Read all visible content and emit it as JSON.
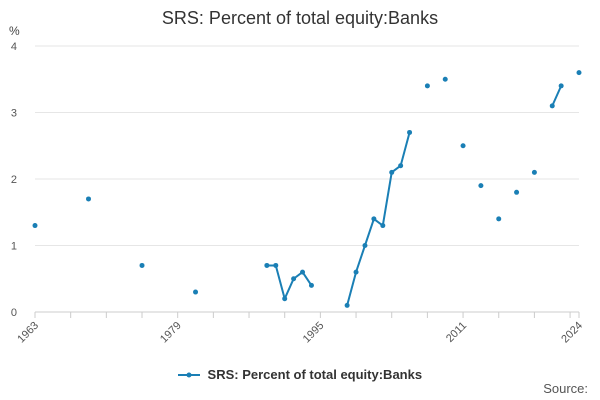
{
  "title": "SRS: Percent of total equity:Banks",
  "source_label": "Source:",
  "colors": {
    "series": "#1a7fb5",
    "grid": "#e6e6e6",
    "axis": "#cccccc"
  },
  "chart_data": {
    "type": "line",
    "title": "SRS: Percent of total equity:Banks",
    "ylabel": "%",
    "xlabel": "",
    "xlim": [
      1963,
      2024
    ],
    "ylim": [
      0,
      4
    ],
    "x_ticks": [
      1963,
      1979,
      1995,
      2011,
      2024
    ],
    "y_ticks": [
      0,
      1,
      2,
      3,
      4
    ],
    "grid": true,
    "legend": "bottom",
    "series": [
      {
        "name": "SRS: Percent of total equity:Banks",
        "points": [
          [
            1963,
            1.3
          ],
          [
            1969,
            1.7
          ],
          [
            1975,
            0.7
          ],
          [
            1981,
            0.3
          ],
          [
            1989,
            0.7
          ],
          [
            1990,
            0.7
          ],
          [
            1991,
            0.2
          ],
          [
            1992,
            0.5
          ],
          [
            1993,
            0.6
          ],
          [
            1994,
            0.4
          ],
          [
            1998,
            0.1
          ],
          [
            1999,
            0.6
          ],
          [
            2000,
            1.0
          ],
          [
            2001,
            1.4
          ],
          [
            2002,
            1.3
          ],
          [
            2003,
            2.1
          ],
          [
            2004,
            2.2
          ],
          [
            2005,
            2.7
          ],
          [
            2007,
            3.4
          ],
          [
            2009,
            3.5
          ],
          [
            2011,
            2.5
          ],
          [
            2013,
            1.9
          ],
          [
            2015,
            1.4
          ],
          [
            2017,
            1.8
          ],
          [
            2019,
            2.1
          ],
          [
            2021,
            3.1
          ],
          [
            2022,
            3.4
          ],
          [
            2024,
            3.6
          ]
        ]
      }
    ]
  }
}
